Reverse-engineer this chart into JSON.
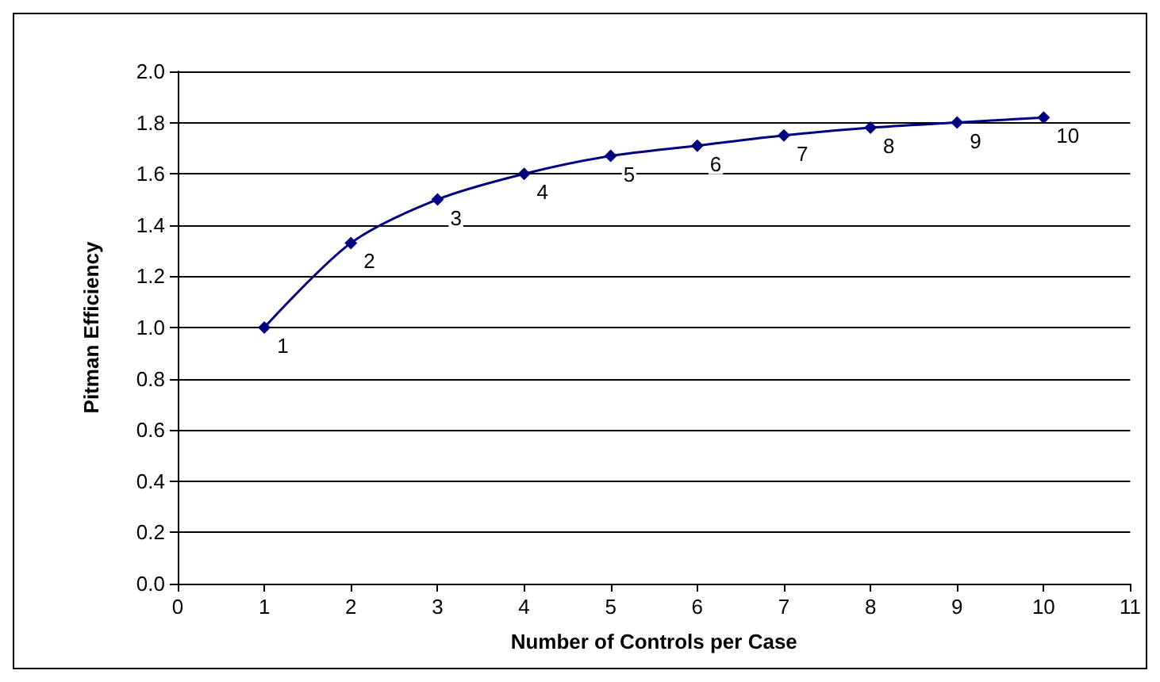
{
  "chart_data": {
    "type": "line",
    "xlabel": "Number of Controls per Case",
    "ylabel": "Pitman Efficiency",
    "x": [
      1,
      2,
      3,
      4,
      5,
      6,
      7,
      8,
      9,
      10
    ],
    "series": [
      {
        "color": "#000080",
        "values": [
          1.0,
          1.33,
          1.5,
          1.6,
          1.67,
          1.71,
          1.75,
          1.78,
          1.8,
          1.82
        ]
      }
    ],
    "annotations": [
      {
        "text": "1",
        "x": 1,
        "y": 1.0
      },
      {
        "text": "2",
        "x": 2,
        "y": 1.33
      },
      {
        "text": "3",
        "x": 3,
        "y": 1.5
      },
      {
        "text": "4",
        "x": 4,
        "y": 1.6
      },
      {
        "text": "5",
        "x": 5,
        "y": 1.67
      },
      {
        "text": "6",
        "x": 6,
        "y": 1.71
      },
      {
        "text": "7",
        "x": 7,
        "y": 1.75
      },
      {
        "text": "8",
        "x": 8,
        "y": 1.78
      },
      {
        "text": "9",
        "x": 9,
        "y": 1.8
      },
      {
        "text": "10",
        "x": 10,
        "y": 1.82
      }
    ],
    "xlim": [
      0,
      11
    ],
    "xticks": [
      0,
      1,
      2,
      3,
      4,
      5,
      6,
      7,
      8,
      9,
      10,
      11
    ],
    "ylim": [
      0,
      2.0
    ],
    "yticks": [
      {
        "value": 0,
        "label": "0.0"
      },
      {
        "value": 0.2,
        "label": "0.2"
      },
      {
        "value": 0.4,
        "label": "0.4"
      },
      {
        "value": 0.6,
        "label": "0.6"
      },
      {
        "value": 0.8,
        "label": "0.8"
      },
      {
        "value": 1.0,
        "label": "1.0"
      },
      {
        "value": 1.2,
        "label": "1.2"
      },
      {
        "value": 1.4,
        "label": "1.4"
      },
      {
        "value": 1.6,
        "label": "1.6"
      },
      {
        "value": 1.8,
        "label": "1.8"
      },
      {
        "value": 2.0,
        "label": "2.0"
      }
    ],
    "grid": "y",
    "marker": "diamond",
    "line_style": "solid"
  }
}
